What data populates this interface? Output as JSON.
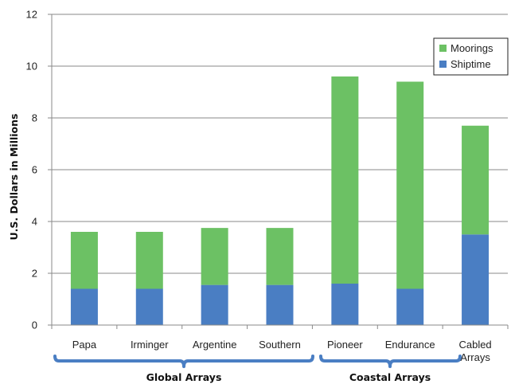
{
  "chart_data": {
    "type": "bar",
    "stacked": true,
    "categories": [
      "Papa",
      "Irminger",
      "Argentine",
      "Southern",
      "Pioneer",
      "Endurance",
      [
        "Cabled",
        "Arrays"
      ]
    ],
    "series": [
      {
        "name": "Shiptime",
        "values": [
          1.4,
          1.4,
          1.55,
          1.55,
          1.6,
          1.4,
          3.5
        ],
        "color": "#4a7ec3"
      },
      {
        "name": "Moorings",
        "values": [
          2.2,
          2.2,
          2.2,
          2.2,
          8.0,
          8.0,
          4.2
        ],
        "color": "#6cc164"
      }
    ],
    "title": "",
    "xlabel": "",
    "ylabel": "U.S. Dollars in Millions",
    "ylim": [
      0,
      12
    ],
    "yticks": [
      0,
      2,
      4,
      6,
      8,
      10,
      12
    ],
    "grid": true,
    "legend": {
      "position": "top-right",
      "order": [
        "Moorings",
        "Shiptime"
      ]
    },
    "groups": [
      {
        "label": "Global Arrays",
        "categories": [
          "Papa",
          "Irminger",
          "Argentine",
          "Southern"
        ]
      },
      {
        "label": "Coastal Arrays",
        "categories": [
          "Pioneer",
          "Endurance"
        ]
      }
    ],
    "colors": {
      "grid": "#8a8a8a",
      "axis": "#8a8a8a",
      "bracket": "#4a7ec3"
    }
  }
}
